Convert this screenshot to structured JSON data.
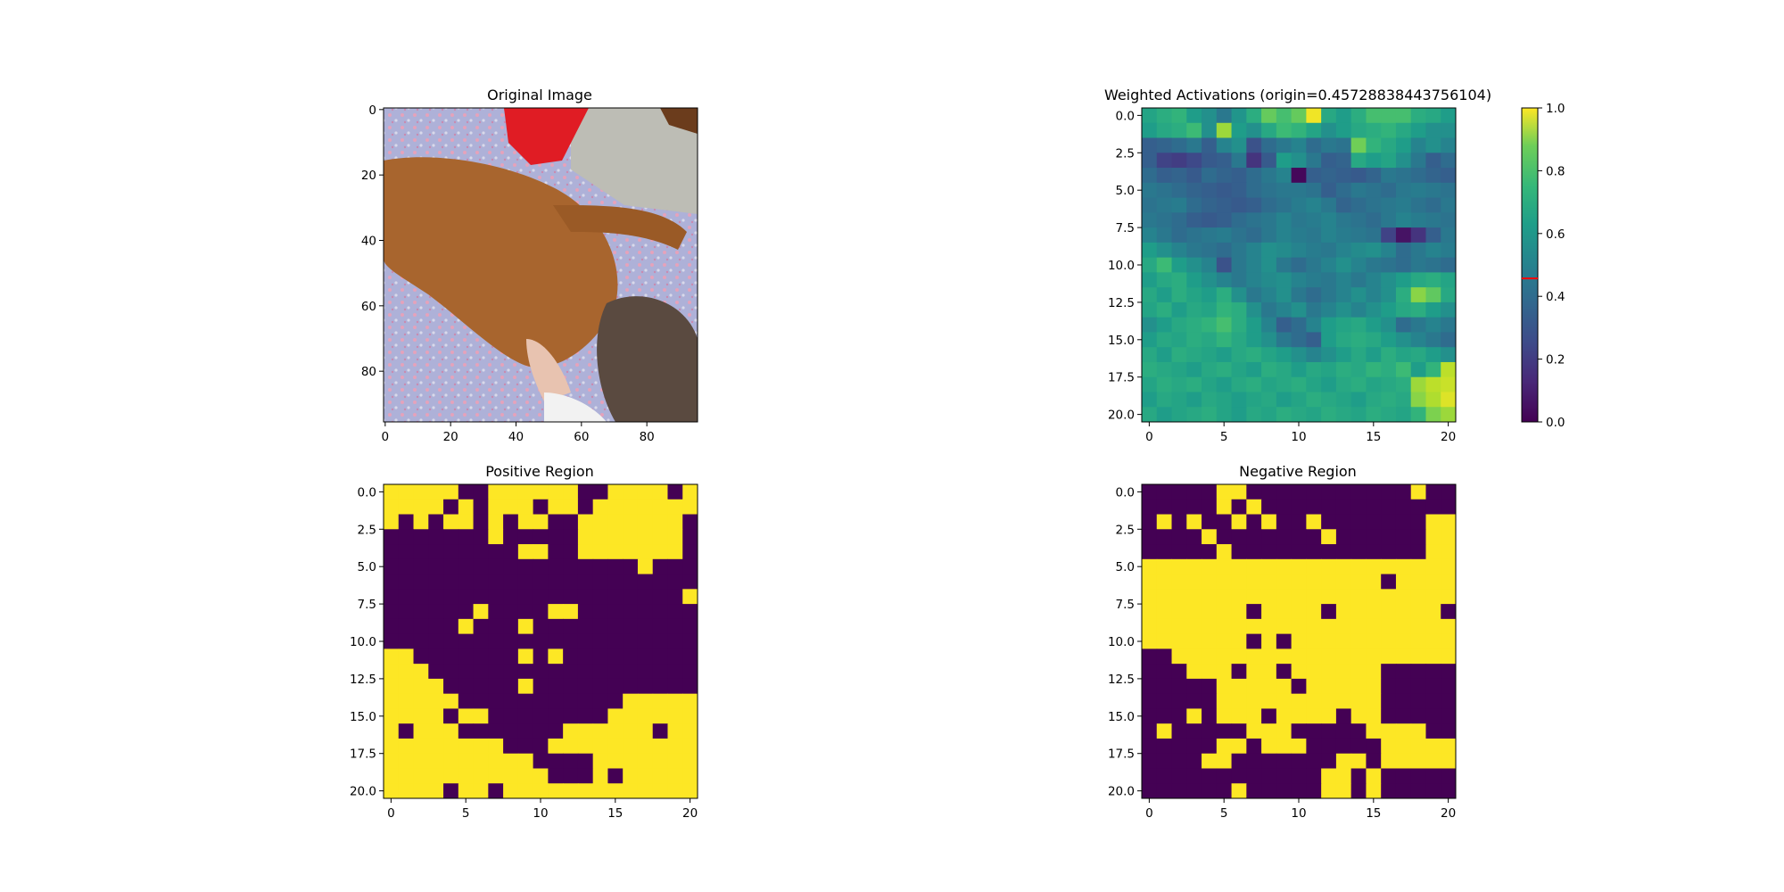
{
  "chart_data": [
    {
      "type": "image",
      "title": "Original Image",
      "image_size": [
        96,
        96
      ],
      "xticks": [
        "0",
        "20",
        "40",
        "60",
        "80"
      ],
      "yticks": [
        "0",
        "20",
        "40",
        "60",
        "80"
      ],
      "description_regions": {
        "background": "#a9aed6",
        "dog": "#a8652e",
        "shirt": "#e01c24",
        "cloth": "#bdbdb5",
        "hair": "#5a4a40"
      }
    },
    {
      "type": "heatmap",
      "title": "Weighted Activations (origin=0.45728838443756104)",
      "colormap": "viridis",
      "grid_size": [
        21,
        21
      ],
      "xticks": [
        "0",
        "5",
        "10",
        "15",
        "20"
      ],
      "yticks": [
        "0.0",
        "2.5",
        "5.0",
        "7.5",
        "10.0",
        "12.5",
        "15.0",
        "17.5",
        "20.0"
      ],
      "colorbar_ticks": [
        "0.0",
        "0.2",
        "0.4",
        "0.6",
        "0.8",
        "1.0"
      ],
      "colorbar_marker": 0.457,
      "values": [
        [
          0.58,
          0.62,
          0.65,
          0.55,
          0.5,
          0.4,
          0.52,
          0.62,
          0.76,
          0.7,
          0.76,
          0.98,
          0.6,
          0.55,
          0.62,
          0.7,
          0.7,
          0.7,
          0.62,
          0.6,
          0.55
        ],
        [
          0.55,
          0.6,
          0.62,
          0.68,
          0.5,
          0.85,
          0.55,
          0.5,
          0.6,
          0.68,
          0.65,
          0.58,
          0.5,
          0.55,
          0.6,
          0.62,
          0.65,
          0.6,
          0.55,
          0.5,
          0.5
        ],
        [
          0.3,
          0.32,
          0.35,
          0.4,
          0.3,
          0.45,
          0.5,
          0.25,
          0.35,
          0.4,
          0.45,
          0.35,
          0.4,
          0.38,
          0.78,
          0.65,
          0.6,
          0.55,
          0.45,
          0.5,
          0.45
        ],
        [
          0.3,
          0.2,
          0.18,
          0.22,
          0.28,
          0.3,
          0.4,
          0.15,
          0.28,
          0.55,
          0.5,
          0.4,
          0.3,
          0.32,
          0.6,
          0.55,
          0.58,
          0.5,
          0.4,
          0.3,
          0.35
        ],
        [
          0.35,
          0.3,
          0.32,
          0.28,
          0.35,
          0.32,
          0.3,
          0.35,
          0.4,
          0.45,
          0.02,
          0.3,
          0.32,
          0.3,
          0.28,
          0.32,
          0.4,
          0.38,
          0.35,
          0.32,
          0.3
        ],
        [
          0.4,
          0.38,
          0.35,
          0.32,
          0.3,
          0.28,
          0.3,
          0.35,
          0.38,
          0.4,
          0.4,
          0.38,
          0.3,
          0.35,
          0.4,
          0.38,
          0.35,
          0.4,
          0.42,
          0.4,
          0.38
        ],
        [
          0.38,
          0.4,
          0.42,
          0.35,
          0.32,
          0.3,
          0.28,
          0.3,
          0.35,
          0.38,
          0.42,
          0.45,
          0.4,
          0.32,
          0.35,
          0.38,
          0.4,
          0.42,
          0.38,
          0.35,
          0.4
        ],
        [
          0.4,
          0.38,
          0.35,
          0.3,
          0.28,
          0.3,
          0.35,
          0.38,
          0.4,
          0.45,
          0.4,
          0.42,
          0.45,
          0.4,
          0.38,
          0.35,
          0.4,
          0.45,
          0.42,
          0.4,
          0.38
        ],
        [
          0.45,
          0.4,
          0.35,
          0.38,
          0.4,
          0.42,
          0.38,
          0.35,
          0.4,
          0.45,
          0.42,
          0.4,
          0.45,
          0.42,
          0.4,
          0.38,
          0.2,
          0.05,
          0.15,
          0.3,
          0.4
        ],
        [
          0.55,
          0.5,
          0.45,
          0.4,
          0.38,
          0.35,
          0.4,
          0.45,
          0.5,
          0.48,
          0.45,
          0.42,
          0.4,
          0.45,
          0.48,
          0.5,
          0.45,
          0.35,
          0.4,
          0.45,
          0.42
        ],
        [
          0.6,
          0.68,
          0.55,
          0.5,
          0.45,
          0.25,
          0.4,
          0.45,
          0.5,
          0.4,
          0.35,
          0.4,
          0.45,
          0.5,
          0.45,
          0.4,
          0.38,
          0.35,
          0.4,
          0.38,
          0.35
        ],
        [
          0.55,
          0.6,
          0.62,
          0.55,
          0.5,
          0.45,
          0.4,
          0.45,
          0.48,
          0.5,
          0.45,
          0.42,
          0.4,
          0.45,
          0.4,
          0.45,
          0.5,
          0.55,
          0.6,
          0.62,
          0.58
        ],
        [
          0.6,
          0.55,
          0.62,
          0.58,
          0.55,
          0.62,
          0.5,
          0.4,
          0.45,
          0.5,
          0.4,
          0.35,
          0.4,
          0.45,
          0.5,
          0.45,
          0.5,
          0.62,
          0.82,
          0.75,
          0.6
        ],
        [
          0.58,
          0.62,
          0.55,
          0.6,
          0.58,
          0.65,
          0.62,
          0.5,
          0.4,
          0.45,
          0.5,
          0.4,
          0.45,
          0.5,
          0.45,
          0.5,
          0.55,
          0.6,
          0.62,
          0.55,
          0.5
        ],
        [
          0.5,
          0.55,
          0.6,
          0.62,
          0.65,
          0.7,
          0.62,
          0.55,
          0.45,
          0.3,
          0.35,
          0.45,
          0.55,
          0.58,
          0.6,
          0.55,
          0.5,
          0.35,
          0.4,
          0.45,
          0.4
        ],
        [
          0.55,
          0.6,
          0.58,
          0.62,
          0.6,
          0.65,
          0.6,
          0.55,
          0.5,
          0.4,
          0.35,
          0.3,
          0.55,
          0.6,
          0.62,
          0.6,
          0.55,
          0.5,
          0.45,
          0.4,
          0.35
        ],
        [
          0.6,
          0.55,
          0.62,
          0.6,
          0.58,
          0.55,
          0.6,
          0.62,
          0.58,
          0.55,
          0.5,
          0.45,
          0.5,
          0.55,
          0.6,
          0.55,
          0.62,
          0.58,
          0.6,
          0.55,
          0.5
        ],
        [
          0.62,
          0.6,
          0.58,
          0.55,
          0.6,
          0.62,
          0.58,
          0.55,
          0.62,
          0.6,
          0.55,
          0.6,
          0.58,
          0.62,
          0.6,
          0.65,
          0.62,
          0.68,
          0.55,
          0.65,
          0.9
        ],
        [
          0.58,
          0.62,
          0.6,
          0.62,
          0.58,
          0.55,
          0.6,
          0.62,
          0.58,
          0.6,
          0.62,
          0.58,
          0.55,
          0.6,
          0.62,
          0.58,
          0.6,
          0.62,
          0.85,
          0.9,
          0.92
        ],
        [
          0.55,
          0.6,
          0.58,
          0.55,
          0.6,
          0.58,
          0.55,
          0.58,
          0.6,
          0.55,
          0.58,
          0.62,
          0.6,
          0.58,
          0.55,
          0.6,
          0.62,
          0.6,
          0.82,
          0.88,
          0.95
        ],
        [
          0.6,
          0.55,
          0.58,
          0.6,
          0.62,
          0.58,
          0.55,
          0.6,
          0.58,
          0.62,
          0.6,
          0.58,
          0.62,
          0.6,
          0.58,
          0.62,
          0.6,
          0.58,
          0.65,
          0.8,
          0.85
        ]
      ]
    },
    {
      "type": "heatmap",
      "title": "Positive Region",
      "colormap": "binary-viridis",
      "colors": {
        "on": "#fde725",
        "off": "#440154"
      },
      "grid_size": [
        21,
        21
      ],
      "xticks": [
        "0",
        "5",
        "10",
        "15",
        "20"
      ],
      "yticks": [
        "0.0",
        "2.5",
        "5.0",
        "7.5",
        "10.0",
        "12.5",
        "15.0",
        "17.5",
        "20.0"
      ],
      "values": [
        "111110011111100111101",
        "111101011101101111111",
        "101011010110011111110",
        "000000010000011111110",
        "000000000110011111110",
        "000000000000000001000",
        "000000000000000000000",
        "000000000000000000001",
        "000000100001100000000",
        "000001000100000000000",
        "000000000000000000000",
        "110000000101000000000",
        "111000000000000000000",
        "111100000100000000000",
        "111110000000000011111",
        "111101100000000111111",
        "101110000000111111011",
        "111111110001111111111",
        "111111111100001111111",
        "111111111110001011111",
        "111101101111111111111"
      ]
    },
    {
      "type": "heatmap",
      "title": "Negative Region",
      "colormap": "binary-viridis",
      "colors": {
        "on": "#fde725",
        "off": "#440154"
      },
      "grid_size": [
        21,
        21
      ],
      "xticks": [
        "0",
        "5",
        "10",
        "15",
        "20"
      ],
      "yticks": [
        "0.0",
        "2.5",
        "5.0",
        "7.5",
        "10.0",
        "12.5",
        "15.0",
        "17.5",
        "20.0"
      ],
      "values": [
        "000001100000000000100",
        "000001010000000000000",
        "010100101001000000011",
        "000010000000100000011",
        "000001000000000000011",
        "111111111111111111111",
        "111111111111111101111",
        "111111111111111111111",
        "111111101111011111110",
        "111111111111111111111",
        "111111101011111111111",
        "001111111111111111111",
        "000111011011111100000",
        "000001111101111100000",
        "000001111111111100000",
        "000101110111101100000",
        "010000011100000111100",
        "000001101110000011111",
        "000011000000011011111",
        "000000000000110100000",
        "000000100000110100000"
      ]
    }
  ]
}
